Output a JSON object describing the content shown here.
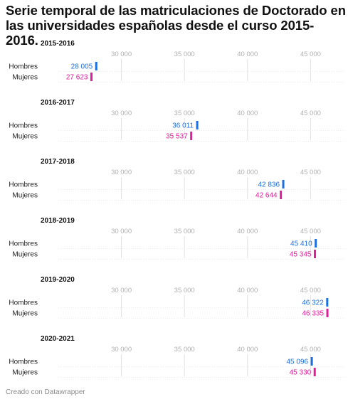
{
  "title": "Serie temporal de las matriculaciones de Doctorado en las universidades españolas desde el curso 2015-2016.",
  "footer": "Creado con Datawrapper",
  "colors": {
    "hombres": "#1c6fe0",
    "mujeres": "#e01e9a",
    "grid": "#e2e2e2",
    "tick": "#b0b0b0"
  },
  "chart_data": {
    "type": "bar",
    "axis_ticks": [
      "30 000",
      "35 000",
      "40 000",
      "45 000"
    ],
    "tick_values": [
      30000,
      35000,
      40000,
      45000
    ],
    "xlim": [
      25000,
      47800
    ],
    "series_names": [
      "Hombres",
      "Mujeres"
    ],
    "panels": [
      {
        "year": "2015-2016",
        "values": [
          28005,
          27623
        ],
        "labels": [
          "28 005",
          "27 623"
        ]
      },
      {
        "year": "2016-2017",
        "values": [
          36011,
          35537
        ],
        "labels": [
          "36 011",
          "35 537"
        ]
      },
      {
        "year": "2017-2018",
        "values": [
          42836,
          42644
        ],
        "labels": [
          "42 836",
          "42 644"
        ]
      },
      {
        "year": "2018-2019",
        "values": [
          45410,
          45345
        ],
        "labels": [
          "45 410",
          "45 345"
        ]
      },
      {
        "year": "2019-2020",
        "values": [
          46322,
          46335
        ],
        "labels": [
          "46 322",
          "46 335"
        ]
      },
      {
        "year": "2020-2021",
        "values": [
          45096,
          45330
        ],
        "labels": [
          "45 096",
          "45 330"
        ]
      }
    ]
  }
}
